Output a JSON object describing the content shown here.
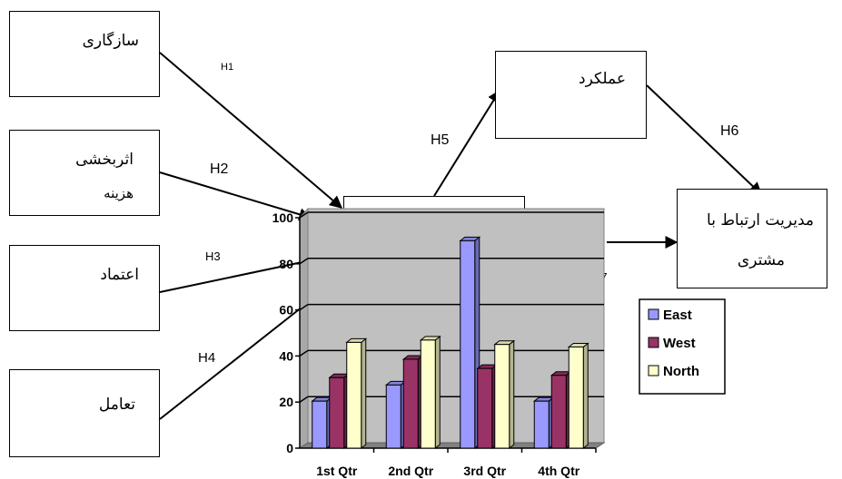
{
  "boxes": {
    "compatibility": "سازگاری",
    "cost_effectiveness_line1": "اثربخشی",
    "cost_effectiveness_line2": "هزینه",
    "trust": "اعتماد",
    "interaction": "تعامل",
    "performance": "عملکرد",
    "crm_line1": "مدیریت ارتباط با",
    "crm_line2": "مشتری"
  },
  "hypotheses": {
    "h1": "H1",
    "h2": "H2",
    "h3": "H3",
    "h4": "H4",
    "h5": "H5",
    "h6": "H6",
    "h7": "H7"
  },
  "colors": {
    "east": "#9999ff",
    "west": "#993366",
    "north": "#ffffcc",
    "plot_bg": "#c0c0c0"
  },
  "chart_data": {
    "type": "bar",
    "categories": [
      "1st Qtr",
      "2nd Qtr",
      "3rd Qtr",
      "4th Qtr"
    ],
    "series": [
      {
        "name": "East",
        "values": [
          20.4,
          27.4,
          90,
          20.4
        ]
      },
      {
        "name": "West",
        "values": [
          30.6,
          38.6,
          34.6,
          31.6
        ]
      },
      {
        "name": "North",
        "values": [
          45.9,
          46.9,
          45,
          43.9
        ]
      }
    ],
    "ylim": [
      0,
      100
    ],
    "yticks": [
      "0",
      "20",
      "40",
      "60",
      "80",
      "100"
    ],
    "grid": true,
    "legend_position": "right"
  }
}
